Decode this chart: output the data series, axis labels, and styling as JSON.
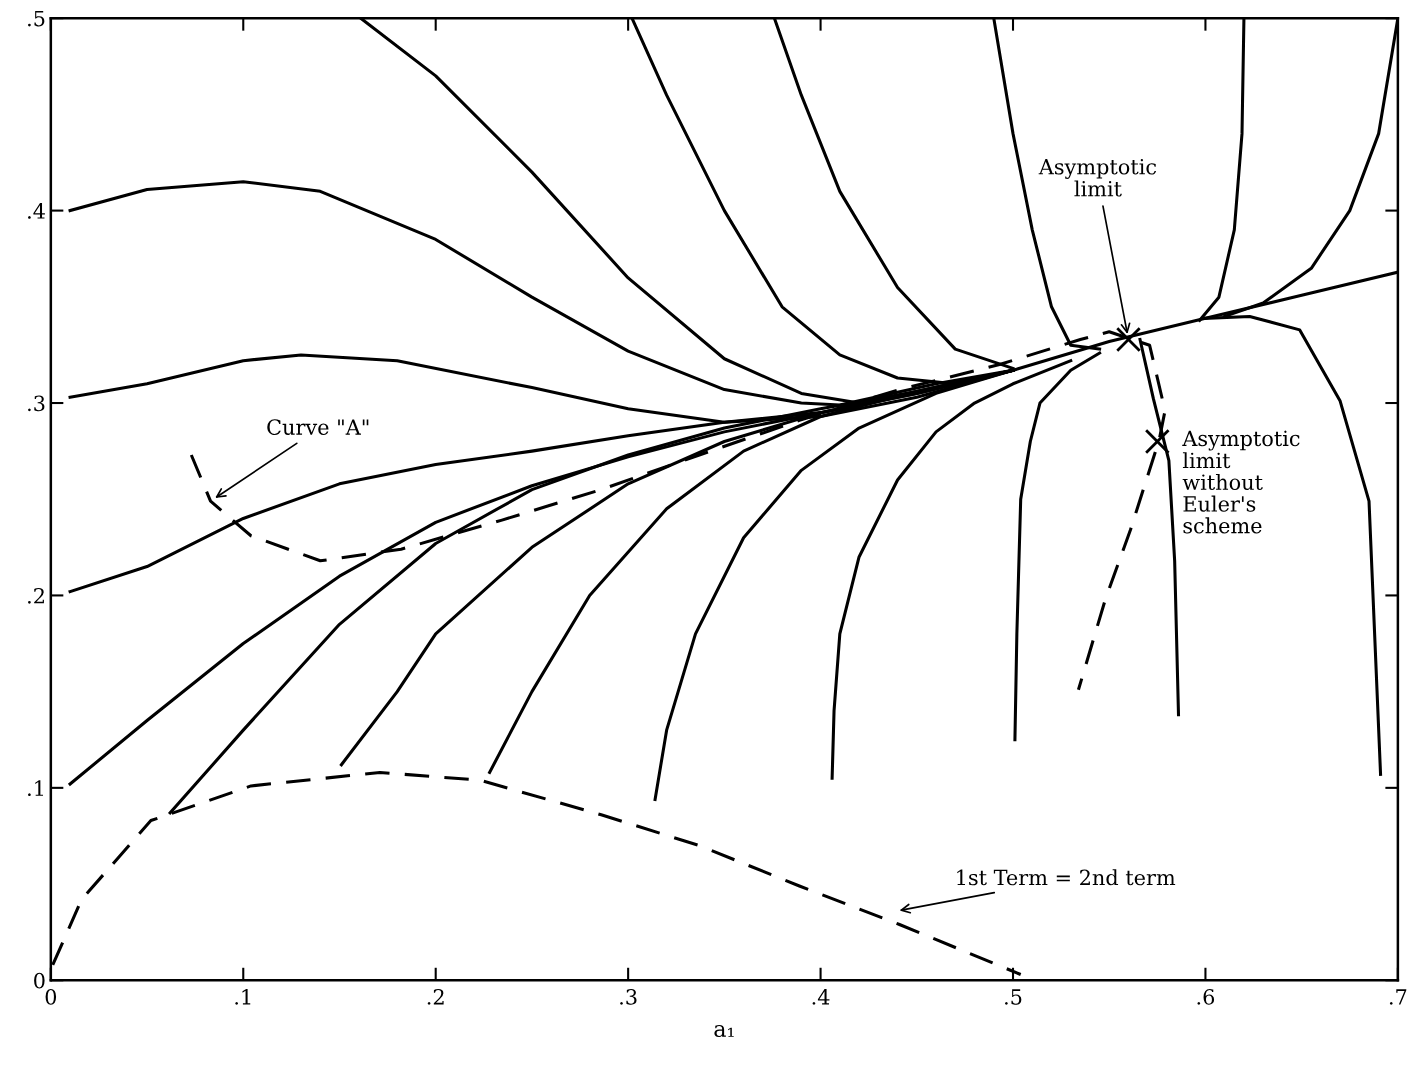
{
  "chart_data": {
    "type": "line",
    "xlabel": "a₁",
    "xlim": [
      0,
      0.7
    ],
    "ylim": [
      0,
      0.5
    ],
    "xticks": [
      0,
      {
        "value": 0.1,
        "label": ".1"
      },
      {
        "value": 0.2,
        "label": ".2"
      },
      {
        "value": 0.3,
        "label": ".3"
      },
      {
        "value": 0.4,
        "label": ".4"
      },
      {
        "value": 0.5,
        "label": ".5"
      },
      {
        "value": 0.6,
        "label": ".6"
      },
      {
        "value": 0.7,
        "label": ".7"
      }
    ],
    "yticks": [
      0,
      {
        "value": 0.1,
        "label": ".1"
      },
      {
        "value": 0.2,
        "label": ".2"
      },
      {
        "value": 0.3,
        "label": ".3"
      },
      {
        "value": 0.4,
        "label": ".4"
      },
      {
        "value": 0.5,
        "label": ".5"
      }
    ],
    "grid": false,
    "legend": false,
    "series": [
      {
        "color": "#000000",
        "line_style": "solid",
        "x": [
          0.01,
          0.05,
          0.1,
          0.14,
          0.2,
          0.25,
          0.3,
          0.35,
          0.39,
          0.41,
          0.46,
          0.5,
          0.55,
          0.6,
          0.65,
          0.7
        ],
        "values": [
          0.4,
          0.411,
          0.415,
          0.41,
          0.385,
          0.355,
          0.327,
          0.307,
          0.3,
          0.299,
          0.31,
          0.317,
          0.332,
          0.344,
          0.356,
          0.368
        ]
      },
      {
        "color": "#000000",
        "line_style": "solid",
        "x": [
          0.01,
          0.05,
          0.1,
          0.13,
          0.18,
          0.25,
          0.3,
          0.35,
          0.4,
          0.45,
          0.5
        ],
        "values": [
          0.303,
          0.31,
          0.322,
          0.325,
          0.322,
          0.308,
          0.297,
          0.29,
          0.293,
          0.303,
          0.317
        ]
      },
      {
        "color": "#000000",
        "line_style": "solid",
        "x": [
          0.01,
          0.05,
          0.1,
          0.15,
          0.2,
          0.25,
          0.3,
          0.35,
          0.4,
          0.45,
          0.5
        ],
        "values": [
          0.202,
          0.215,
          0.24,
          0.258,
          0.268,
          0.275,
          0.283,
          0.29,
          0.295,
          0.305,
          0.317
        ]
      },
      {
        "color": "#000000",
        "line_style": "solid",
        "x": [
          0.01,
          0.05,
          0.1,
          0.15,
          0.2,
          0.25,
          0.3,
          0.35,
          0.4,
          0.45,
          0.5
        ],
        "values": [
          0.102,
          0.135,
          0.175,
          0.21,
          0.238,
          0.257,
          0.272,
          0.285,
          0.295,
          0.305,
          0.317
        ]
      },
      {
        "color": "#000000",
        "line_style": "solid",
        "x": [
          0.062,
          0.1,
          0.15,
          0.2,
          0.25,
          0.3,
          0.35,
          0.4,
          0.45,
          0.5
        ],
        "values": [
          0.087,
          0.13,
          0.185,
          0.227,
          0.255,
          0.273,
          0.287,
          0.297,
          0.306,
          0.317
        ]
      },
      {
        "color": "#000000",
        "line_style": "solid",
        "x": [
          0.151,
          0.18,
          0.2,
          0.25,
          0.3,
          0.35,
          0.4,
          0.45,
          0.5
        ],
        "values": [
          0.112,
          0.15,
          0.18,
          0.225,
          0.258,
          0.28,
          0.295,
          0.306,
          0.317
        ]
      },
      {
        "color": "#000000",
        "line_style": "solid",
        "x": [
          0.228,
          0.25,
          0.28,
          0.32,
          0.36,
          0.4,
          0.45,
          0.5
        ],
        "values": [
          0.108,
          0.15,
          0.2,
          0.245,
          0.275,
          0.293,
          0.306,
          0.317
        ]
      },
      {
        "color": "#000000",
        "line_style": "solid",
        "x": [
          0.314,
          0.32,
          0.335,
          0.36,
          0.39,
          0.42,
          0.46,
          0.5
        ],
        "values": [
          0.094,
          0.13,
          0.18,
          0.23,
          0.265,
          0.287,
          0.305,
          0.317
        ]
      },
      {
        "color": "#000000",
        "line_style": "solid",
        "x": [
          0.406,
          0.407,
          0.41,
          0.42,
          0.44,
          0.46,
          0.48,
          0.5,
          0.53
        ],
        "values": [
          0.105,
          0.14,
          0.18,
          0.22,
          0.26,
          0.285,
          0.3,
          0.31,
          0.322
        ]
      },
      {
        "color": "#000000",
        "line_style": "solid",
        "x": [
          0.501,
          0.502,
          0.504,
          0.509,
          0.514,
          0.53,
          0.545
        ],
        "values": [
          0.125,
          0.18,
          0.25,
          0.28,
          0.3,
          0.317,
          0.326
        ]
      },
      {
        "color": "#000000",
        "line_style": "solid",
        "x": [
          0.161,
          0.2,
          0.25,
          0.3,
          0.35,
          0.39,
          0.42
        ],
        "values": [
          0.5,
          0.47,
          0.42,
          0.365,
          0.323,
          0.305,
          0.3
        ]
      },
      {
        "color": "#000000",
        "line_style": "solid",
        "x": [
          0.302,
          0.32,
          0.35,
          0.38,
          0.41,
          0.44,
          0.47
        ],
        "values": [
          0.5,
          0.46,
          0.4,
          0.35,
          0.325,
          0.313,
          0.31
        ]
      },
      {
        "color": "#000000",
        "line_style": "solid",
        "x": [
          0.376,
          0.39,
          0.41,
          0.44,
          0.47,
          0.5
        ],
        "values": [
          0.5,
          0.46,
          0.41,
          0.36,
          0.328,
          0.318
        ]
      },
      {
        "color": "#000000",
        "line_style": "solid",
        "x": [
          0.49,
          0.5,
          0.51,
          0.52,
          0.53,
          0.545
        ],
        "values": [
          0.5,
          0.44,
          0.39,
          0.35,
          0.33,
          0.328
        ]
      },
      {
        "color": "#000000",
        "line_style": "solid",
        "x": [
          0.62,
          0.619,
          0.615,
          0.607,
          0.597
        ],
        "values": [
          0.5,
          0.44,
          0.39,
          0.355,
          0.343
        ]
      },
      {
        "color": "#000000",
        "line_style": "solid",
        "x": [
          0.7,
          0.69,
          0.675,
          0.655,
          0.63,
          0.61
        ],
        "values": [
          0.5,
          0.44,
          0.4,
          0.37,
          0.352,
          0.345
        ]
      },
      {
        "color": "#000000",
        "line_style": "solid",
        "x": [
          0.566,
          0.573,
          0.581,
          0.584,
          0.586
        ],
        "values": [
          0.333,
          0.302,
          0.27,
          0.218,
          0.138
        ]
      },
      {
        "color": "#000000",
        "line_style": "solid",
        "x": [
          0.6,
          0.623,
          0.649,
          0.67,
          0.685,
          0.691
        ],
        "values": [
          0.344,
          0.345,
          0.338,
          0.301,
          0.249,
          0.107
        ]
      },
      {
        "color": "#000000",
        "line_style": "dashed",
        "x": [
          0.073,
          0.083,
          0.104,
          0.14,
          0.182,
          0.234,
          0.286,
          0.337,
          0.389,
          0.441,
          0.493,
          0.535,
          0.55,
          0.571,
          0.579,
          0.576,
          0.561,
          0.548,
          0.534
        ],
        "values": [
          0.273,
          0.249,
          0.231,
          0.218,
          0.224,
          0.239,
          0.255,
          0.273,
          0.291,
          0.307,
          0.32,
          0.333,
          0.337,
          0.33,
          0.296,
          0.281,
          0.234,
          0.198,
          0.151
        ]
      },
      {
        "color": "#000000",
        "line_style": "dashed",
        "x": [
          0.001,
          0.016,
          0.052,
          0.104,
          0.171,
          0.223,
          0.286,
          0.337,
          0.389,
          0.441,
          0.504
        ],
        "values": [
          0.008,
          0.042,
          0.083,
          0.101,
          0.108,
          0.104,
          0.086,
          0.07,
          0.049,
          0.029,
          0.003
        ]
      },
      {
        "type": "scatter",
        "marker": "cross",
        "color": "#000000",
        "x": [
          0.56
        ],
        "values": [
          0.333
        ]
      },
      {
        "type": "scatter",
        "marker": "cross",
        "color": "#000000",
        "x": [
          0.575
        ],
        "values": [
          0.28
        ]
      }
    ],
    "annotations": [
      {
        "text": "Asymptotic\nlimit",
        "x": 0.56,
        "y": 0.333
      },
      {
        "text": "Asymptotic\nlimit\nwithout\nEuler's\nscheme",
        "x": 0.575,
        "y": 0.28
      },
      {
        "text": "Curve \"A\"",
        "x": 0.083,
        "y": 0.249
      },
      "1st Term = 2nd term"
    ]
  }
}
